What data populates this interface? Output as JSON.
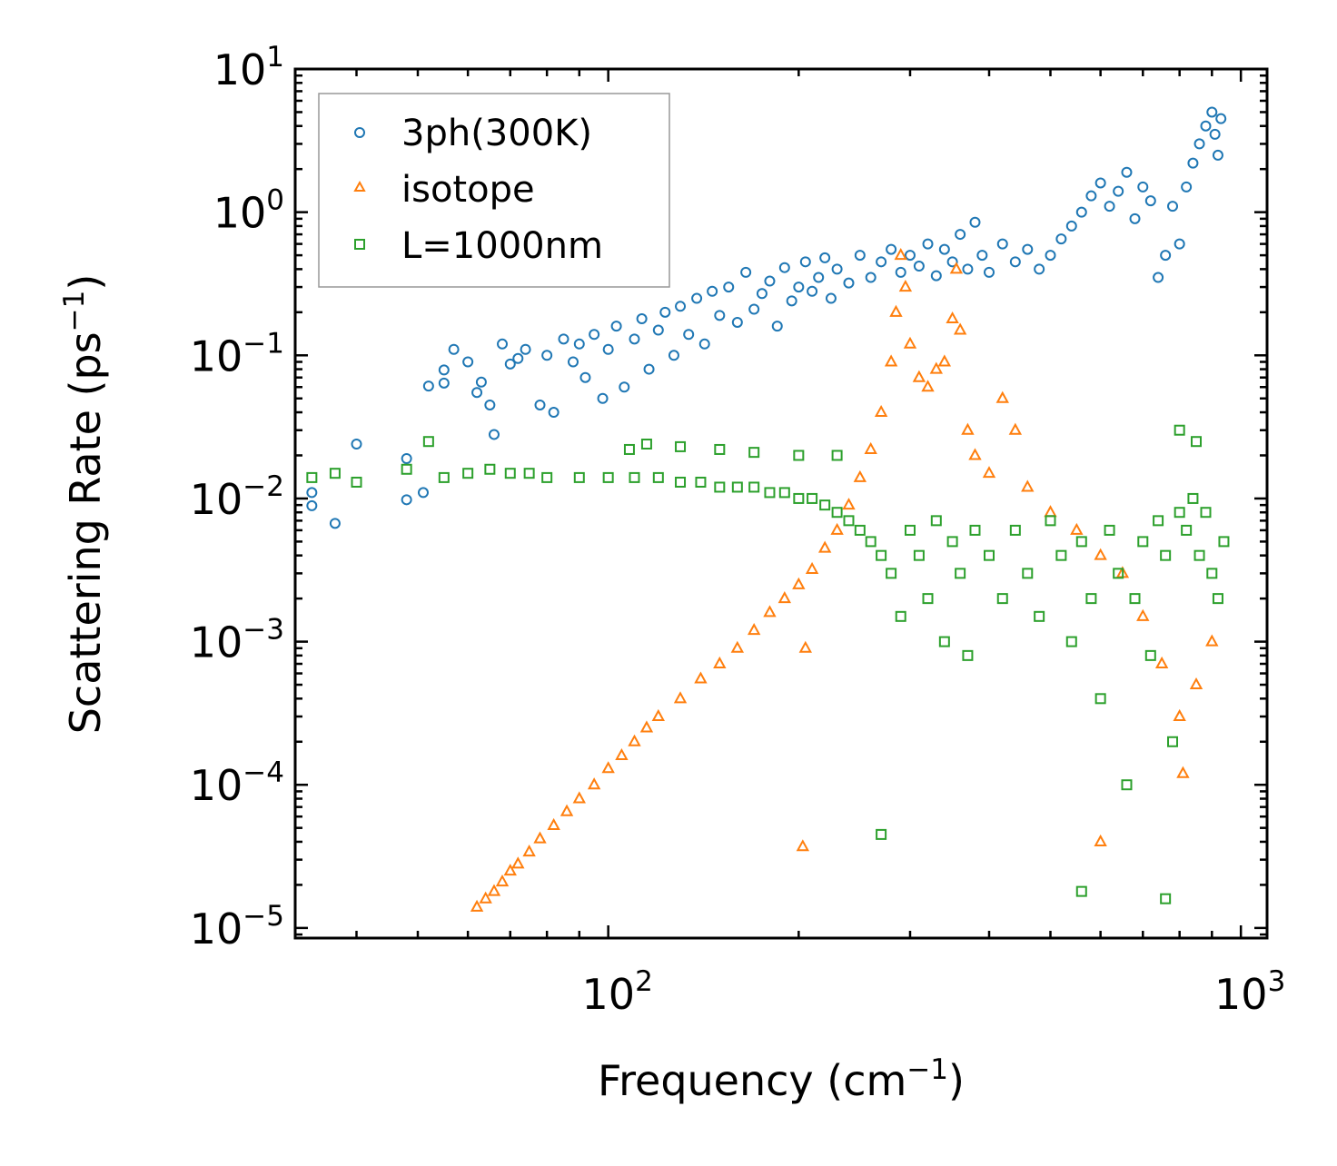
{
  "chart_data": {
    "type": "scatter",
    "title": "",
    "xlabel": "Frequency (cm",
    "xlabel_sup": "−1",
    "xlabel_end": ")",
    "ylabel": "Scattering Rate (ps",
    "ylabel_sup": "−1",
    "ylabel_end": ")",
    "x_scale": "log",
    "y_scale": "log",
    "xlim": [
      32,
      1100
    ],
    "ylim": [
      8.5e-06,
      10
    ],
    "x_ticks": [
      {
        "value": 100,
        "base": "10",
        "exp": "2"
      },
      {
        "value": 1000,
        "base": "10",
        "exp": "3"
      }
    ],
    "y_ticks": [
      {
        "value": 10,
        "base": "10",
        "exp": "1"
      },
      {
        "value": 1,
        "base": "10",
        "exp": "0"
      },
      {
        "value": 0.1,
        "base": "10",
        "exp": "−1"
      },
      {
        "value": 0.01,
        "base": "10",
        "exp": "−2"
      },
      {
        "value": 0.001,
        "base": "10",
        "exp": "−3"
      },
      {
        "value": 0.0001,
        "base": "10",
        "exp": "−4"
      },
      {
        "value": 1e-05,
        "base": "10",
        "exp": "−5"
      }
    ],
    "legend_position": "top-left",
    "series": [
      {
        "name": "3ph(300K)",
        "marker": "circle",
        "color": "#1f77b4",
        "points": [
          [
            34,
            0.0089
          ],
          [
            34,
            0.011
          ],
          [
            37,
            0.0067
          ],
          [
            40,
            0.024
          ],
          [
            48,
            0.0098
          ],
          [
            48,
            0.019
          ],
          [
            51,
            0.011
          ],
          [
            52,
            0.061
          ],
          [
            55,
            0.079
          ],
          [
            55,
            0.064
          ],
          [
            57,
            0.11
          ],
          [
            60,
            0.09
          ],
          [
            62,
            0.055
          ],
          [
            63,
            0.065
          ],
          [
            65,
            0.045
          ],
          [
            66,
            0.028
          ],
          [
            68,
            0.12
          ],
          [
            70,
            0.087
          ],
          [
            72,
            0.095
          ],
          [
            74,
            0.11
          ],
          [
            78,
            0.045
          ],
          [
            80,
            0.1
          ],
          [
            82,
            0.04
          ],
          [
            85,
            0.13
          ],
          [
            88,
            0.09
          ],
          [
            90,
            0.12
          ],
          [
            92,
            0.07
          ],
          [
            95,
            0.14
          ],
          [
            98,
            0.05
          ],
          [
            100,
            0.11
          ],
          [
            103,
            0.16
          ],
          [
            106,
            0.06
          ],
          [
            110,
            0.13
          ],
          [
            113,
            0.18
          ],
          [
            116,
            0.08
          ],
          [
            120,
            0.15
          ],
          [
            123,
            0.2
          ],
          [
            127,
            0.1
          ],
          [
            130,
            0.22
          ],
          [
            134,
            0.14
          ],
          [
            138,
            0.25
          ],
          [
            142,
            0.12
          ],
          [
            146,
            0.28
          ],
          [
            150,
            0.19
          ],
          [
            155,
            0.3
          ],
          [
            160,
            0.17
          ],
          [
            165,
            0.38
          ],
          [
            170,
            0.21
          ],
          [
            175,
            0.27
          ],
          [
            180,
            0.33
          ],
          [
            185,
            0.16
          ],
          [
            190,
            0.41
          ],
          [
            195,
            0.24
          ],
          [
            200,
            0.3
          ],
          [
            205,
            0.45
          ],
          [
            210,
            0.28
          ],
          [
            215,
            0.35
          ],
          [
            220,
            0.48
          ],
          [
            225,
            0.25
          ],
          [
            230,
            0.4
          ],
          [
            240,
            0.32
          ],
          [
            250,
            0.5
          ],
          [
            260,
            0.35
          ],
          [
            270,
            0.45
          ],
          [
            280,
            0.55
          ],
          [
            290,
            0.38
          ],
          [
            300,
            0.5
          ],
          [
            310,
            0.42
          ],
          [
            320,
            0.6
          ],
          [
            330,
            0.36
          ],
          [
            340,
            0.55
          ],
          [
            350,
            0.45
          ],
          [
            360,
            0.7
          ],
          [
            370,
            0.4
          ],
          [
            380,
            0.85
          ],
          [
            390,
            0.5
          ],
          [
            400,
            0.38
          ],
          [
            420,
            0.6
          ],
          [
            440,
            0.45
          ],
          [
            460,
            0.55
          ],
          [
            480,
            0.4
          ],
          [
            500,
            0.5
          ],
          [
            520,
            0.65
          ],
          [
            540,
            0.8
          ],
          [
            560,
            1.0
          ],
          [
            580,
            1.3
          ],
          [
            600,
            1.6
          ],
          [
            620,
            1.1
          ],
          [
            640,
            1.4
          ],
          [
            660,
            1.9
          ],
          [
            680,
            0.9
          ],
          [
            700,
            1.5
          ],
          [
            720,
            1.2
          ],
          [
            740,
            0.35
          ],
          [
            760,
            0.5
          ],
          [
            780,
            1.1
          ],
          [
            800,
            0.6
          ],
          [
            820,
            1.5
          ],
          [
            840,
            2.2
          ],
          [
            860,
            3.0
          ],
          [
            880,
            4.0
          ],
          [
            900,
            5.0
          ],
          [
            910,
            3.5
          ],
          [
            920,
            2.5
          ],
          [
            930,
            4.5
          ]
        ]
      },
      {
        "name": "isotope",
        "marker": "triangle",
        "color": "#ff7f0e",
        "points": [
          [
            62,
            1.4e-05
          ],
          [
            64,
            1.6e-05
          ],
          [
            66,
            1.8e-05
          ],
          [
            68,
            2.1e-05
          ],
          [
            70,
            2.5e-05
          ],
          [
            72,
            2.8e-05
          ],
          [
            75,
            3.4e-05
          ],
          [
            78,
            4.2e-05
          ],
          [
            82,
            5.2e-05
          ],
          [
            86,
            6.5e-05
          ],
          [
            90,
            8e-05
          ],
          [
            95,
            0.0001
          ],
          [
            100,
            0.00013
          ],
          [
            105,
            0.00016
          ],
          [
            110,
            0.0002
          ],
          [
            115,
            0.00025
          ],
          [
            120,
            0.0003
          ],
          [
            130,
            0.0004
          ],
          [
            140,
            0.00055
          ],
          [
            150,
            0.0007
          ],
          [
            160,
            0.0009
          ],
          [
            170,
            0.0012
          ],
          [
            180,
            0.0016
          ],
          [
            190,
            0.002
          ],
          [
            200,
            0.0025
          ],
          [
            210,
            0.0032
          ],
          [
            220,
            0.0045
          ],
          [
            230,
            0.006
          ],
          [
            240,
            0.009
          ],
          [
            250,
            0.014
          ],
          [
            260,
            0.022
          ],
          [
            270,
            0.04
          ],
          [
            280,
            0.09
          ],
          [
            285,
            0.2
          ],
          [
            290,
            0.5
          ],
          [
            295,
            0.3
          ],
          [
            300,
            0.12
          ],
          [
            310,
            0.07
          ],
          [
            320,
            0.06
          ],
          [
            330,
            0.08
          ],
          [
            340,
            0.09
          ],
          [
            350,
            0.18
          ],
          [
            355,
            0.4
          ],
          [
            360,
            0.15
          ],
          [
            370,
            0.03
          ],
          [
            380,
            0.02
          ],
          [
            400,
            0.015
          ],
          [
            420,
            0.05
          ],
          [
            440,
            0.03
          ],
          [
            460,
            0.012
          ],
          [
            500,
            0.008
          ],
          [
            550,
            0.006
          ],
          [
            600,
            0.004
          ],
          [
            650,
            0.003
          ],
          [
            700,
            0.0015
          ],
          [
            750,
            0.0007
          ],
          [
            800,
            0.0003
          ],
          [
            850,
            0.0005
          ],
          [
            900,
            0.001
          ],
          [
            205,
            0.0009
          ],
          [
            203,
            3.7e-05
          ],
          [
            810,
            0.00012
          ],
          [
            600,
            4e-05
          ]
        ]
      },
      {
        "name": "L=1000nm",
        "marker": "square",
        "color": "#2ca02c",
        "points": [
          [
            34,
            0.014
          ],
          [
            37,
            0.015
          ],
          [
            40,
            0.013
          ],
          [
            48,
            0.016
          ],
          [
            52,
            0.025
          ],
          [
            55,
            0.014
          ],
          [
            60,
            0.015
          ],
          [
            65,
            0.016
          ],
          [
            70,
            0.015
          ],
          [
            75,
            0.015
          ],
          [
            80,
            0.014
          ],
          [
            90,
            0.014
          ],
          [
            100,
            0.014
          ],
          [
            110,
            0.014
          ],
          [
            120,
            0.014
          ],
          [
            130,
            0.013
          ],
          [
            140,
            0.013
          ],
          [
            150,
            0.012
          ],
          [
            160,
            0.012
          ],
          [
            170,
            0.012
          ],
          [
            180,
            0.011
          ],
          [
            190,
            0.011
          ],
          [
            200,
            0.01
          ],
          [
            210,
            0.01
          ],
          [
            220,
            0.009
          ],
          [
            230,
            0.008
          ],
          [
            240,
            0.007
          ],
          [
            250,
            0.006
          ],
          [
            260,
            0.005
          ],
          [
            270,
            0.004
          ],
          [
            280,
            0.003
          ],
          [
            290,
            0.0015
          ],
          [
            300,
            0.006
          ],
          [
            310,
            0.004
          ],
          [
            320,
            0.002
          ],
          [
            330,
            0.007
          ],
          [
            340,
            0.001
          ],
          [
            350,
            0.005
          ],
          [
            360,
            0.003
          ],
          [
            370,
            0.0008
          ],
          [
            380,
            0.006
          ],
          [
            400,
            0.004
          ],
          [
            420,
            0.002
          ],
          [
            440,
            0.006
          ],
          [
            460,
            0.003
          ],
          [
            480,
            0.0015
          ],
          [
            500,
            0.007
          ],
          [
            520,
            0.004
          ],
          [
            540,
            0.001
          ],
          [
            560,
            0.005
          ],
          [
            580,
            0.002
          ],
          [
            600,
            0.0004
          ],
          [
            620,
            0.006
          ],
          [
            640,
            0.003
          ],
          [
            660,
            0.0001
          ],
          [
            680,
            0.002
          ],
          [
            700,
            0.005
          ],
          [
            720,
            0.0008
          ],
          [
            740,
            0.007
          ],
          [
            760,
            0.004
          ],
          [
            780,
            0.0002
          ],
          [
            800,
            0.008
          ],
          [
            820,
            0.006
          ],
          [
            840,
            0.01
          ],
          [
            860,
            0.004
          ],
          [
            880,
            0.008
          ],
          [
            900,
            0.003
          ],
          [
            920,
            0.002
          ],
          [
            940,
            0.005
          ],
          [
            108,
            0.022
          ],
          [
            115,
            0.024
          ],
          [
            130,
            0.023
          ],
          [
            150,
            0.022
          ],
          [
            170,
            0.021
          ],
          [
            200,
            0.02
          ],
          [
            230,
            0.02
          ],
          [
            800,
            0.03
          ],
          [
            850,
            0.025
          ],
          [
            270,
            4.5e-05
          ],
          [
            560,
            1.8e-05
          ],
          [
            760,
            1.6e-05
          ]
        ]
      }
    ]
  }
}
